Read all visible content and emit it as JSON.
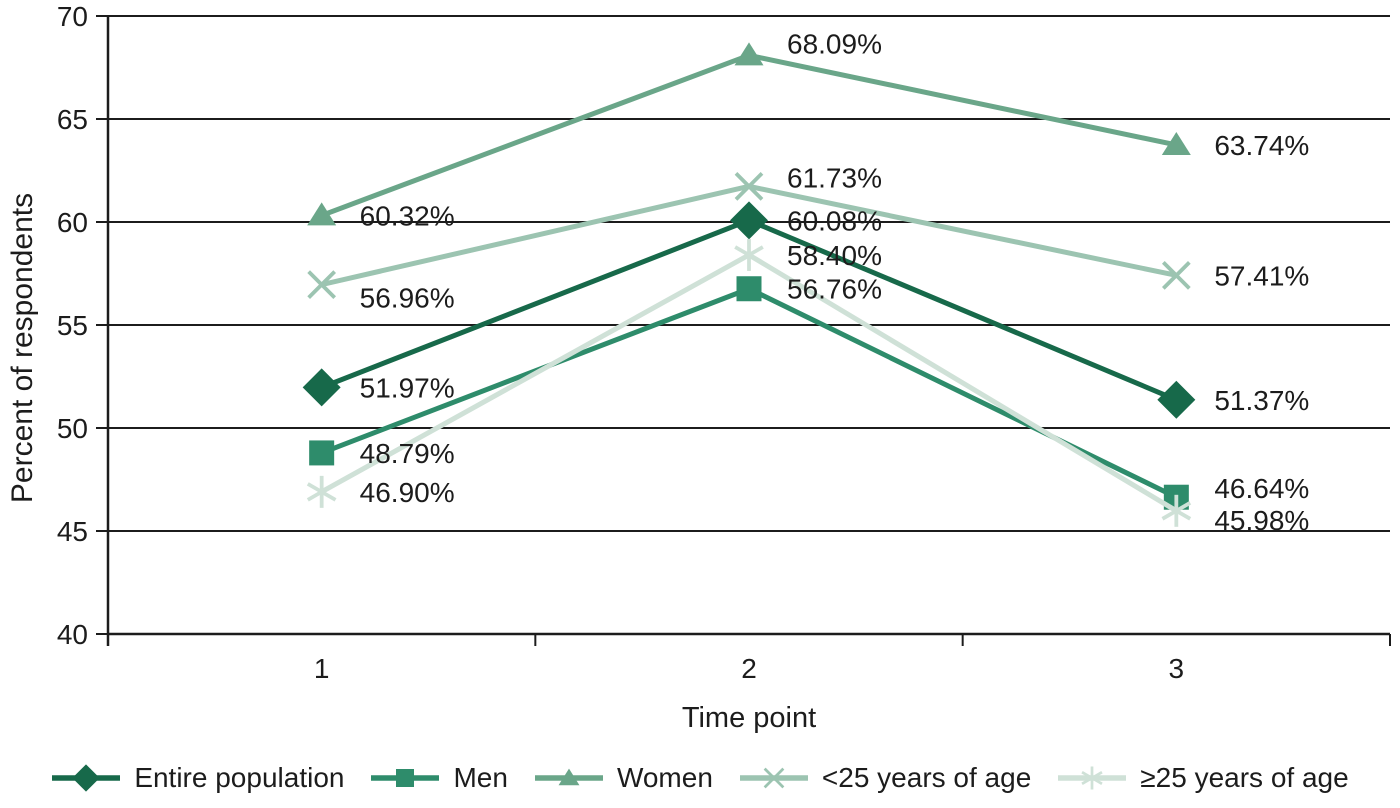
{
  "chart_data": {
    "type": "line",
    "title": "",
    "xlabel": "Time point",
    "ylabel": "Percent of respondents",
    "categories": [
      "1",
      "2",
      "3"
    ],
    "ylim": [
      40,
      70
    ],
    "yticks": [
      40,
      45,
      50,
      55,
      60,
      65,
      70
    ],
    "grid": "horizontal",
    "legend_position": "bottom",
    "axis_color": "#1c1c1c",
    "text_color": "#1c1c1c",
    "series": [
      {
        "name": "Entire population",
        "marker": "diamond",
        "color": "#17694A",
        "values": [
          51.97,
          60.08,
          51.37
        ],
        "labels": [
          "51.97%",
          "60.08%",
          "51.37%"
        ]
      },
      {
        "name": "Men",
        "marker": "square",
        "color": "#2E8C6B",
        "values": [
          48.79,
          56.76,
          46.64
        ],
        "labels": [
          "48.79%",
          "56.76%",
          "46.64%"
        ]
      },
      {
        "name": "Women",
        "marker": "triangle",
        "color": "#6AA689",
        "values": [
          60.32,
          68.09,
          63.74
        ],
        "labels": [
          "60.32%",
          "68.09%",
          "63.74%"
        ]
      },
      {
        "name": "<25 years of age",
        "marker": "x",
        "color": "#9CC4B1",
        "values": [
          56.96,
          61.73,
          57.41
        ],
        "labels": [
          "56.96%",
          "61.73%",
          "57.41%"
        ]
      },
      {
        "name": "≥25 years of age",
        "marker": "asterisk",
        "color": "#CFE1D7",
        "values": [
          46.9,
          58.4,
          45.98
        ],
        "labels": [
          "46.90%",
          "58.40%",
          "45.98%"
        ]
      }
    ]
  }
}
